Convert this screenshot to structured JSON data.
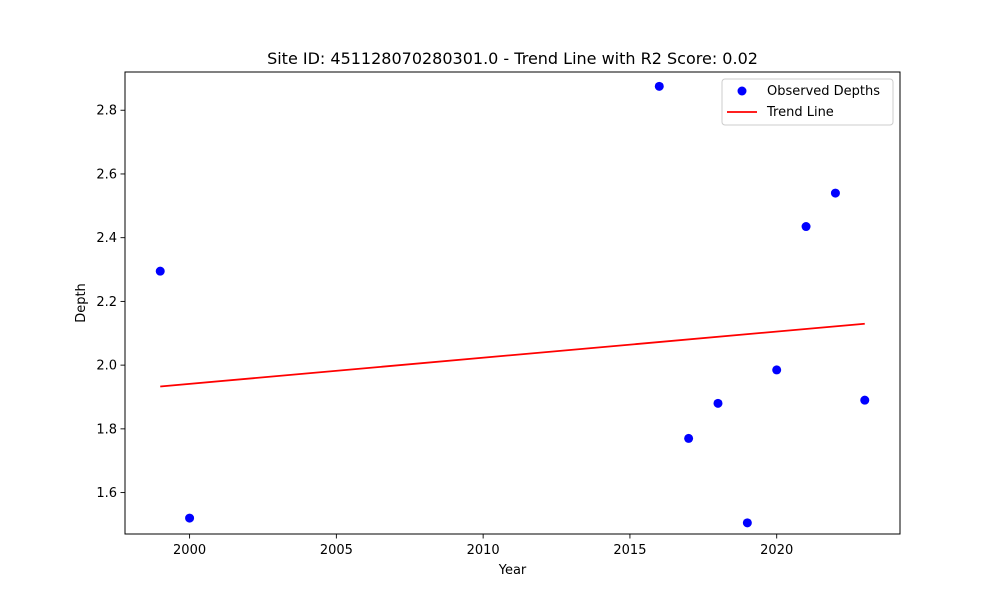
{
  "chart_data": {
    "type": "scatter",
    "title": "Site ID: 451128070280301.0 - Trend Line with R2 Score: 0.02",
    "xlabel": "Year",
    "ylabel": "Depth",
    "xlim": [
      1997.8,
      2024.2
    ],
    "ylim": [
      1.47,
      2.92
    ],
    "xticks": [
      2000,
      2005,
      2010,
      2015,
      2020
    ],
    "xtick_labels": [
      "2000",
      "2005",
      "2010",
      "2015",
      "2020"
    ],
    "yticks": [
      1.6,
      1.8,
      2.0,
      2.2,
      2.4,
      2.6,
      2.8
    ],
    "ytick_labels": [
      "1.6",
      "1.8",
      "2.0",
      "2.2",
      "2.4",
      "2.6",
      "2.8"
    ],
    "grid": false,
    "legend_position": "top-right",
    "series": [
      {
        "name": "Observed Depths",
        "kind": "scatter",
        "color": "#0000ff",
        "x": [
          1999,
          2000,
          2016,
          2017,
          2018,
          2019,
          2020,
          2021,
          2022,
          2023
        ],
        "y": [
          2.295,
          1.52,
          2.875,
          1.77,
          1.88,
          1.505,
          1.985,
          2.435,
          2.54,
          1.89
        ]
      },
      {
        "name": "Trend Line",
        "kind": "line",
        "color": "#ff0000",
        "x": [
          1999,
          2023
        ],
        "y": [
          1.933,
          2.13
        ]
      }
    ]
  }
}
